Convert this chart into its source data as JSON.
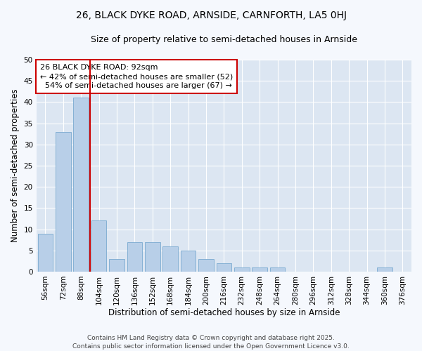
{
  "title": "26, BLACK DYKE ROAD, ARNSIDE, CARNFORTH, LA5 0HJ",
  "subtitle": "Size of property relative to semi-detached houses in Arnside",
  "xlabel": "Distribution of semi-detached houses by size in Arnside",
  "ylabel": "Number of semi-detached properties",
  "bar_color": "#b8cfe8",
  "bar_edge_color": "#7aaad0",
  "plot_bg_color": "#dce6f2",
  "fig_bg_color": "#f5f8fd",
  "grid_color": "#ffffff",
  "categories": [
    "56sqm",
    "72sqm",
    "88sqm",
    "104sqm",
    "120sqm",
    "136sqm",
    "152sqm",
    "168sqm",
    "184sqm",
    "200sqm",
    "216sqm",
    "232sqm",
    "248sqm",
    "264sqm",
    "280sqm",
    "296sqm",
    "312sqm",
    "328sqm",
    "344sqm",
    "360sqm",
    "376sqm"
  ],
  "values": [
    9,
    33,
    41,
    12,
    3,
    7,
    7,
    6,
    5,
    3,
    2,
    1,
    1,
    1,
    0,
    0,
    0,
    0,
    0,
    1,
    0
  ],
  "ylim": [
    0,
    50
  ],
  "yticks": [
    0,
    5,
    10,
    15,
    20,
    25,
    30,
    35,
    40,
    45,
    50
  ],
  "property_label": "26 BLACK DYKE ROAD: 92sqm",
  "pct_smaller": 42,
  "n_smaller": 52,
  "pct_larger": 54,
  "n_larger": 67,
  "vline_x_index": 2.5,
  "annotation_color": "#cc0000",
  "footer_line1": "Contains HM Land Registry data © Crown copyright and database right 2025.",
  "footer_line2": "Contains public sector information licensed under the Open Government Licence v3.0.",
  "title_fontsize": 10,
  "subtitle_fontsize": 9,
  "axis_label_fontsize": 8.5,
  "tick_fontsize": 7.5,
  "annotation_fontsize": 8,
  "footer_fontsize": 6.5
}
